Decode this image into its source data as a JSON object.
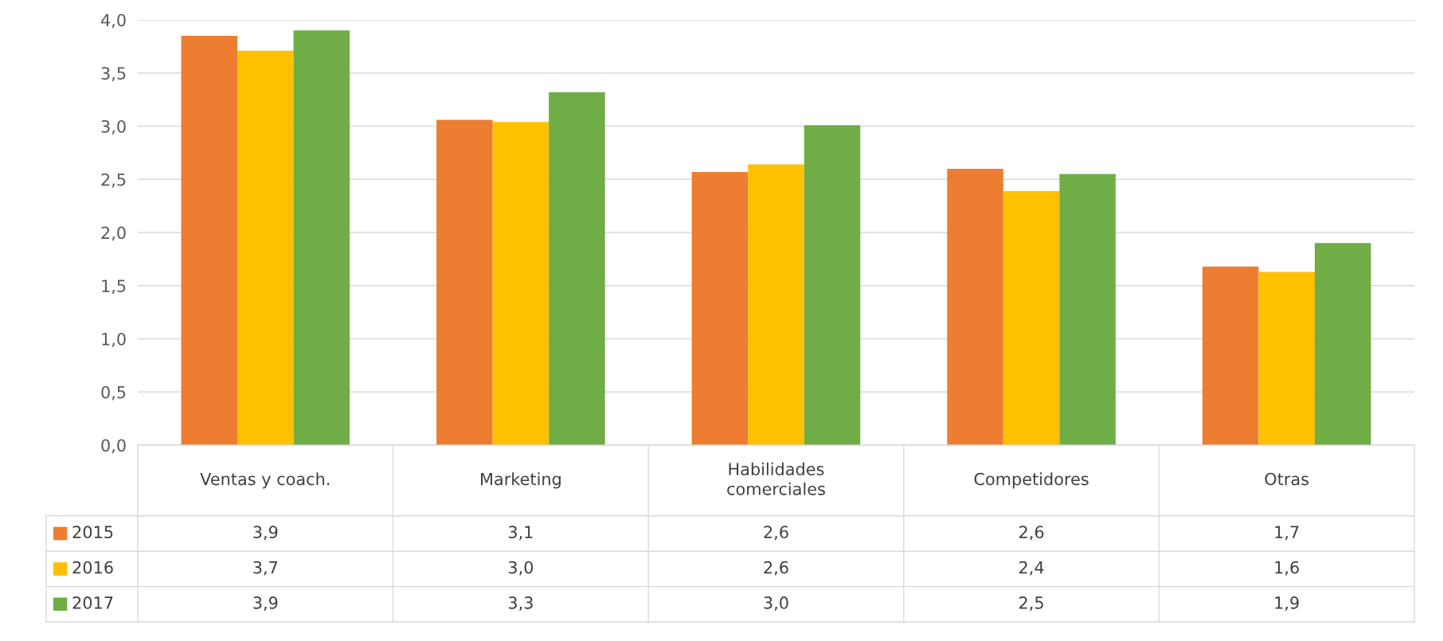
{
  "chart_data": {
    "type": "bar",
    "categories": [
      "Ventas y coach.",
      "Marketing",
      "Habilidades\ncomerciales",
      "Competidores",
      "Otras"
    ],
    "series": [
      {
        "name": "2015",
        "color": "#ed7d31",
        "values": [
          3.85,
          3.06,
          2.57,
          2.6,
          1.68
        ],
        "value_labels": [
          "3,9",
          "3,1",
          "2,6",
          "2,6",
          "1,7"
        ]
      },
      {
        "name": "2016",
        "color": "#ffc000",
        "values": [
          3.71,
          3.04,
          2.64,
          2.39,
          1.63
        ],
        "value_labels": [
          "3,7",
          "3,0",
          "2,6",
          "2,4",
          "1,6"
        ]
      },
      {
        "name": "2017",
        "color": "#70ad47",
        "values": [
          3.9,
          3.32,
          3.01,
          2.55,
          1.9
        ],
        "value_labels": [
          "3,9",
          "3,3",
          "3,0",
          "2,5",
          "1,9"
        ]
      }
    ],
    "ylim": [
      0,
      4
    ],
    "yticks": [
      {
        "value": 0,
        "label": "0,0"
      },
      {
        "value": 0.5,
        "label": "0,5"
      },
      {
        "value": 1,
        "label": "1,0"
      },
      {
        "value": 1.5,
        "label": "1,5"
      },
      {
        "value": 2,
        "label": "2,0"
      },
      {
        "value": 2.5,
        "label": "2,5"
      },
      {
        "value": 3,
        "label": "3,0"
      },
      {
        "value": 3.5,
        "label": "3,5"
      },
      {
        "value": 4,
        "label": "4,0"
      }
    ],
    "grid": "y",
    "legend": "bottom"
  }
}
